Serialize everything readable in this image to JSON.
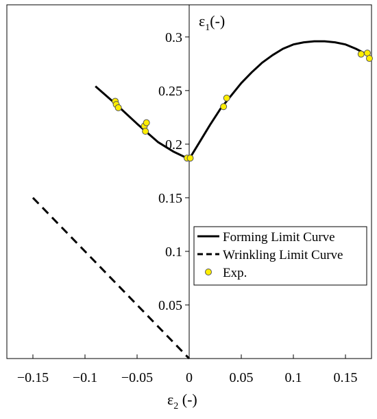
{
  "chart_data": {
    "type": "line",
    "xlim": [
      -0.175,
      0.175
    ],
    "ylim": [
      0,
      0.33
    ],
    "x_ticks": [
      -0.15,
      -0.1,
      -0.05,
      0,
      0.05,
      0.1,
      0.15
    ],
    "x_tick_labels": [
      "−0.15",
      "−0.1",
      "−0.05",
      "0",
      "0.05",
      "0.1",
      "0.15"
    ],
    "y_ticks": [
      0.05,
      0.1,
      0.15,
      0.2,
      0.25,
      0.3
    ],
    "y_tick_labels": [
      "0.05",
      "0.1",
      "0.15",
      "0.2",
      "0.25",
      "0.3"
    ],
    "xlabel": {
      "main": "ε",
      "sub": "2",
      "unit": " (-)"
    },
    "ylabel": {
      "main": "ε",
      "sub": "1",
      "unit": "(-)"
    },
    "grid": false,
    "legend": "right-middle",
    "series": [
      {
        "name": "Forming Limit Curve",
        "style": "solid",
        "color": "#000000",
        "x": [
          -0.09,
          -0.07,
          -0.05,
          -0.03,
          -0.015,
          0,
          0.01,
          0.02,
          0.03,
          0.04,
          0.05,
          0.06,
          0.07,
          0.08,
          0.09,
          0.1,
          0.11,
          0.12,
          0.13,
          0.14,
          0.15,
          0.16,
          0.17,
          0.175
        ],
        "y": [
          0.254,
          0.237,
          0.219,
          0.202,
          0.193,
          0.186,
          0.202,
          0.218,
          0.233,
          0.245,
          0.257,
          0.267,
          0.276,
          0.283,
          0.289,
          0.293,
          0.295,
          0.296,
          0.296,
          0.295,
          0.293,
          0.289,
          0.284,
          0.279
        ]
      },
      {
        "name": "Wrinkling Limit Curve",
        "style": "dashed",
        "color": "#000000",
        "x": [
          -0.15,
          0
        ],
        "y": [
          0.15,
          0
        ]
      },
      {
        "name": "Exp.",
        "style": "markers",
        "color": "#ffee00",
        "x": [
          -0.071,
          -0.07,
          -0.068,
          -0.043,
          -0.041,
          -0.042,
          -0.002,
          0.001,
          0.033,
          0.036,
          0.165,
          0.171,
          0.173
        ],
        "y": [
          0.24,
          0.237,
          0.234,
          0.217,
          0.22,
          0.212,
          0.187,
          0.187,
          0.235,
          0.243,
          0.284,
          0.285,
          0.28
        ]
      }
    ],
    "colors": {
      "axes": "#000000",
      "marker_fill": "#ffee00",
      "marker_edge": "#555555",
      "background": "#ffffff"
    }
  }
}
